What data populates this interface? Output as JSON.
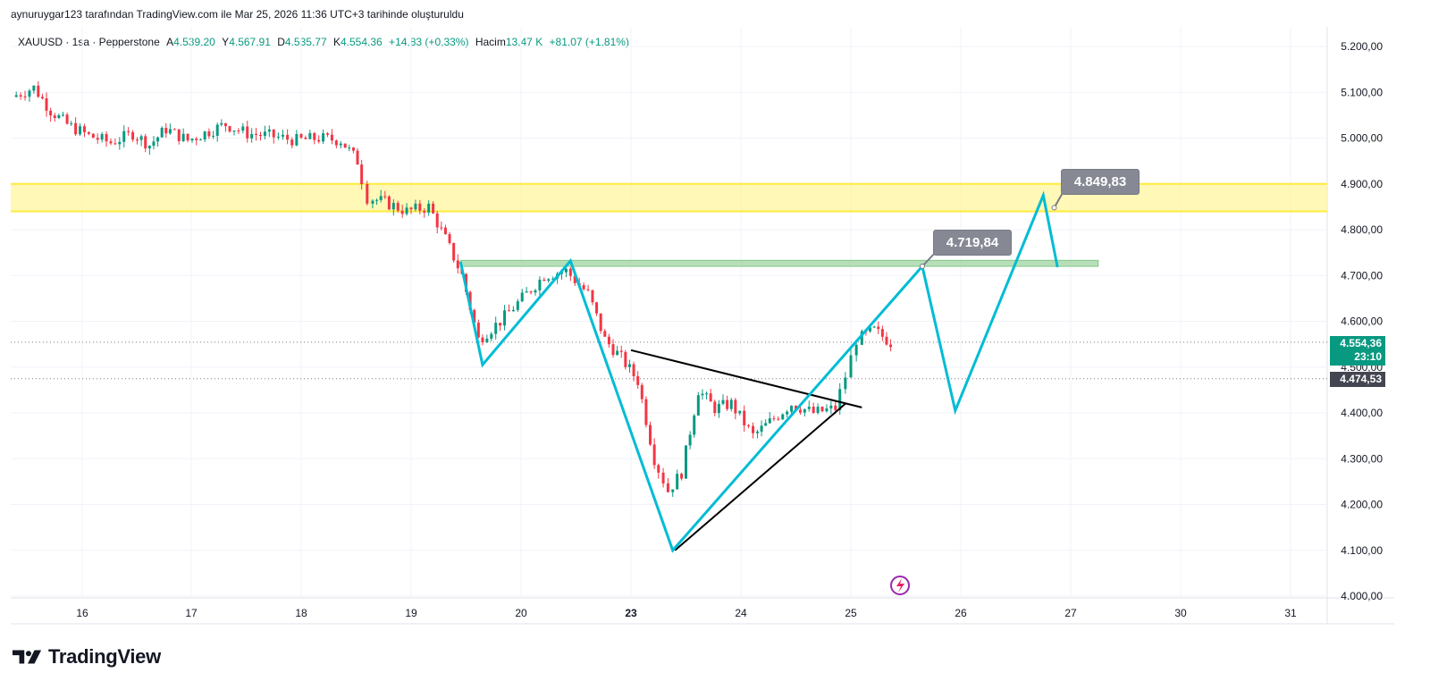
{
  "header": {
    "attribution": "aynuruygar123 tarafından TradingView.com ile Mar 25, 2026 11:36 UTC+3 tarihinde oluşturuldu"
  },
  "legend": {
    "symbol": "XAUUSD · 1sa · Pepperstone",
    "open_label": "A",
    "open_value": "4.539,20",
    "high_label": "Y",
    "high_value": "4.567,91",
    "low_label": "D",
    "low_value": "4.535,77",
    "close_label": "K",
    "close_value": "4.554,36",
    "change": "+14,83 (+0,33%)",
    "volume_label": "Hacim",
    "volume_value": "13,47 K",
    "volume_change": "+81,07 (+1,81%)"
  },
  "price_tags": {
    "current_price": "4.554,36",
    "countdown": "23:10",
    "ref_price": "4.474,53"
  },
  "callouts": {
    "target1": "4.719,84",
    "target2": "4.849,83"
  },
  "brand": {
    "name": "TradingView"
  },
  "colors": {
    "up": "#089981",
    "down": "#f23645",
    "pattern": "#00bcd4",
    "trendline": "#000000",
    "zone_yellow": "#fff59d",
    "zone_yellow_border": "#ffeb3b",
    "zone_green": "#a5d6a7",
    "zone_green_border": "#81c784",
    "callout_bg": "#868993"
  },
  "chart_data": {
    "type": "candlestick",
    "symbol": "XAUUSD",
    "timeframe": "1sa",
    "y_axis": {
      "ticks": [
        "5.200,00",
        "5.100,00",
        "5.000,00",
        "4.900,00",
        "4.800,00",
        "4.700,00",
        "4.600,00",
        "4.500,00",
        "4.400,00",
        "4.300,00",
        "4.200,00",
        "4.100,00",
        "4.000,00"
      ],
      "tick_values": [
        5200,
        5100,
        5000,
        4900,
        4800,
        4700,
        4600,
        4500,
        4400,
        4300,
        4200,
        4100,
        4000
      ],
      "range": [
        4000,
        5200
      ]
    },
    "x_axis": {
      "ticks": [
        "16",
        "17",
        "18",
        "19",
        "20",
        "23",
        "24",
        "25",
        "26",
        "27",
        "30",
        "31"
      ],
      "bold_ticks": [
        "23"
      ]
    },
    "zones": [
      {
        "name": "resistance-zone",
        "from": 4840,
        "to": 4900,
        "start_day": "15",
        "end_day": "31"
      },
      {
        "name": "target-zone",
        "from": 4720,
        "to": 4733,
        "start_day": "19",
        "end_day": "27"
      }
    ],
    "price_lines": [
      {
        "name": "current",
        "value": 4554.36,
        "style": "dotted"
      },
      {
        "name": "reference",
        "value": 4474.53,
        "style": "dotted"
      }
    ],
    "pattern_path": [
      {
        "day": 19.45,
        "price": 4730
      },
      {
        "day": 19.65,
        "price": 4505
      },
      {
        "day": 20.45,
        "price": 4732
      },
      {
        "day": 23.38,
        "price": 4100
      },
      {
        "day": 25.65,
        "price": 4720
      },
      {
        "day": 25.95,
        "price": 4405
      },
      {
        "day": 26.75,
        "price": 4875
      },
      {
        "day": 26.88,
        "price": 4718
      }
    ],
    "trendlines": [
      {
        "from": {
          "day": 23.0,
          "price": 4537
        },
        "to": {
          "day": 25.1,
          "price": 4412
        }
      },
      {
        "from": {
          "day": 23.4,
          "price": 4100
        },
        "to": {
          "day": 24.95,
          "price": 4420
        }
      }
    ],
    "anchor_points": [
      {
        "day": 25.65,
        "price": 4720
      },
      {
        "day": 26.85,
        "price": 4848
      }
    ],
    "candles_close_path": [
      {
        "day": 15.4,
        "price": 5090
      },
      {
        "day": 15.6,
        "price": 5110
      },
      {
        "day": 15.75,
        "price": 5060
      },
      {
        "day": 15.9,
        "price": 5030
      },
      {
        "day": 16.1,
        "price": 5005
      },
      {
        "day": 16.3,
        "price": 4990
      },
      {
        "day": 16.5,
        "price": 5010
      },
      {
        "day": 16.65,
        "price": 4985
      },
      {
        "day": 16.8,
        "price": 5020
      },
      {
        "day": 17.0,
        "price": 4995
      },
      {
        "day": 17.2,
        "price": 5015
      },
      {
        "day": 17.35,
        "price": 5030
      },
      {
        "day": 17.55,
        "price": 5010
      },
      {
        "day": 17.75,
        "price": 5005
      },
      {
        "day": 18.0,
        "price": 4995
      },
      {
        "day": 18.2,
        "price": 5000
      },
      {
        "day": 18.4,
        "price": 4995
      },
      {
        "day": 18.55,
        "price": 4950
      },
      {
        "day": 18.65,
        "price": 4870
      },
      {
        "day": 18.8,
        "price": 4860
      },
      {
        "day": 19.0,
        "price": 4840
      },
      {
        "day": 19.2,
        "price": 4850
      },
      {
        "day": 19.35,
        "price": 4780
      },
      {
        "day": 19.5,
        "price": 4700
      },
      {
        "day": 19.65,
        "price": 4560
      },
      {
        "day": 19.85,
        "price": 4600
      },
      {
        "day": 20.05,
        "price": 4650
      },
      {
        "day": 20.25,
        "price": 4700
      },
      {
        "day": 20.45,
        "price": 4710
      },
      {
        "day": 20.65,
        "price": 4660
      },
      {
        "day": 20.8,
        "price": 4560
      },
      {
        "day": 20.95,
        "price": 4520
      },
      {
        "day": 23.1,
        "price": 4470
      },
      {
        "day": 23.25,
        "price": 4300
      },
      {
        "day": 23.38,
        "price": 4230
      },
      {
        "day": 23.5,
        "price": 4270
      },
      {
        "day": 23.65,
        "price": 4450
      },
      {
        "day": 23.8,
        "price": 4410
      },
      {
        "day": 23.95,
        "price": 4420
      },
      {
        "day": 24.15,
        "price": 4350
      },
      {
        "day": 24.3,
        "price": 4380
      },
      {
        "day": 24.5,
        "price": 4420
      },
      {
        "day": 24.7,
        "price": 4400
      },
      {
        "day": 24.9,
        "price": 4410
      },
      {
        "day": 25.0,
        "price": 4480
      },
      {
        "day": 25.1,
        "price": 4560
      },
      {
        "day": 25.25,
        "price": 4580
      },
      {
        "day": 25.4,
        "price": 4554
      }
    ]
  }
}
